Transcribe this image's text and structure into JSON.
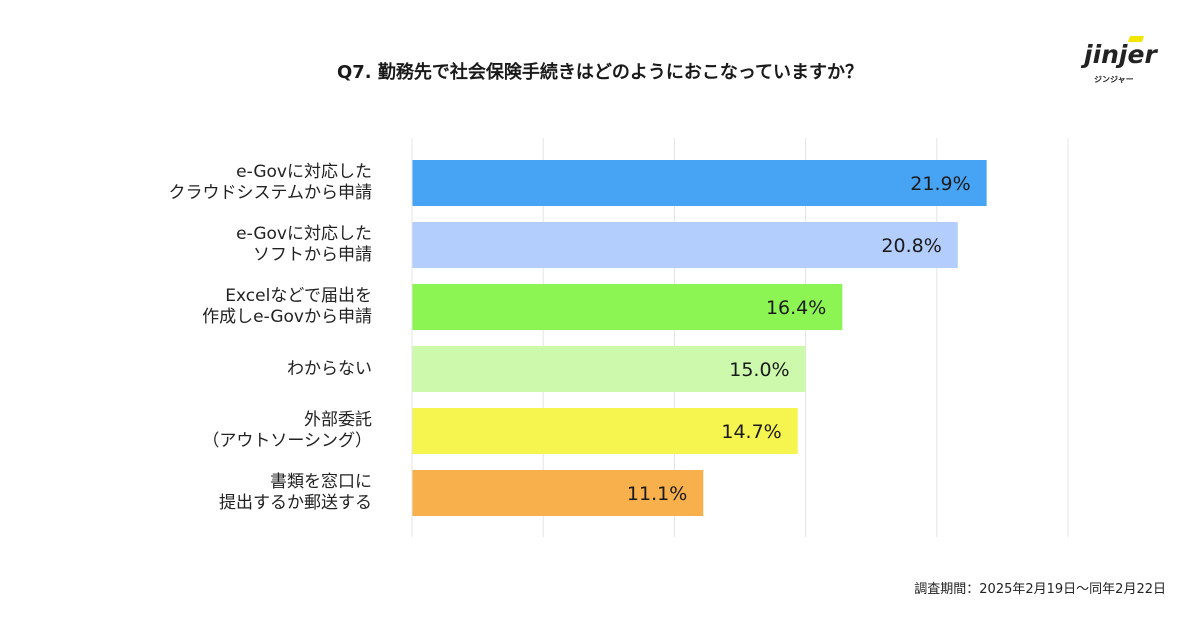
{
  "header": {
    "title": "Q7. 勤務先で社会保険手続きはどのようにおこなっていますか？"
  },
  "logo": {
    "word": "jinjer",
    "sub": "ジンジャー",
    "accent_color": "#f2e500"
  },
  "chart_data": {
    "type": "bar",
    "orientation": "horizontal",
    "categories": [
      "e-Govに対応した\nクラウドシステムから申請",
      "e-Govに対応した\nソフトから申請",
      "Excelなどで届出を\n作成しe-Govから申請",
      "わからない",
      "外部委託\n（アウトソーシング）",
      "書類を窓口に\n提出するか郵送する"
    ],
    "values": [
      21.9,
      20.8,
      16.4,
      15.0,
      14.7,
      11.1
    ],
    "data_labels": [
      "21.9%",
      "20.8%",
      "16.4%",
      "15.0%",
      "14.7%",
      "11.1%"
    ],
    "colors": [
      "#47a4f5",
      "#b3cdfc",
      "#8cf553",
      "#cdf9ad",
      "#f6f550",
      "#f7b04b"
    ],
    "xlim": [
      0,
      25
    ],
    "grid": true,
    "legend": "none"
  },
  "footnote": "調査期間：2025年2月19日〜同年2月22日"
}
